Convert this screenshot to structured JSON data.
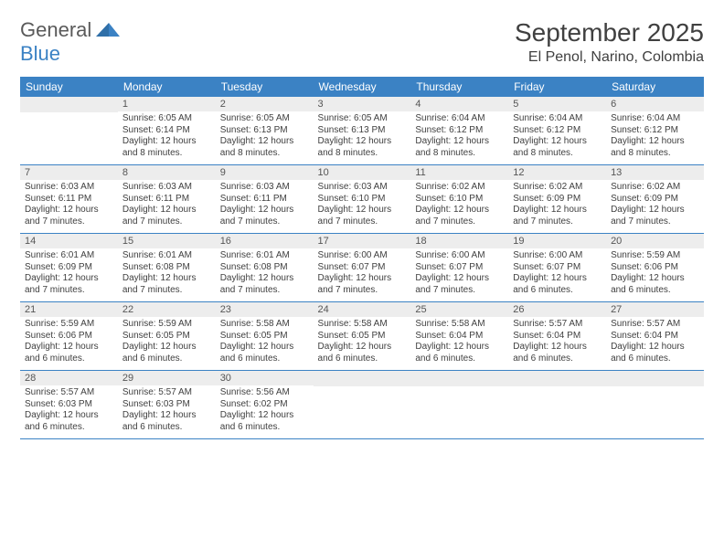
{
  "logo": {
    "text1": "General",
    "text2": "Blue"
  },
  "title": "September 2025",
  "location": "El Penol, Narino, Colombia",
  "colors": {
    "header_bg": "#3b82c4",
    "header_text": "#ffffff",
    "daynum_bg": "#ededed",
    "text": "#404040",
    "rule": "#3b82c4"
  },
  "weekdays": [
    "Sunday",
    "Monday",
    "Tuesday",
    "Wednesday",
    "Thursday",
    "Friday",
    "Saturday"
  ],
  "weeks": [
    [
      {
        "n": "",
        "sr": "",
        "ss": "",
        "dl": ""
      },
      {
        "n": "1",
        "sr": "6:05 AM",
        "ss": "6:14 PM",
        "dl": "12 hours and 8 minutes."
      },
      {
        "n": "2",
        "sr": "6:05 AM",
        "ss": "6:13 PM",
        "dl": "12 hours and 8 minutes."
      },
      {
        "n": "3",
        "sr": "6:05 AM",
        "ss": "6:13 PM",
        "dl": "12 hours and 8 minutes."
      },
      {
        "n": "4",
        "sr": "6:04 AM",
        "ss": "6:12 PM",
        "dl": "12 hours and 8 minutes."
      },
      {
        "n": "5",
        "sr": "6:04 AM",
        "ss": "6:12 PM",
        "dl": "12 hours and 8 minutes."
      },
      {
        "n": "6",
        "sr": "6:04 AM",
        "ss": "6:12 PM",
        "dl": "12 hours and 8 minutes."
      }
    ],
    [
      {
        "n": "7",
        "sr": "6:03 AM",
        "ss": "6:11 PM",
        "dl": "12 hours and 7 minutes."
      },
      {
        "n": "8",
        "sr": "6:03 AM",
        "ss": "6:11 PM",
        "dl": "12 hours and 7 minutes."
      },
      {
        "n": "9",
        "sr": "6:03 AM",
        "ss": "6:11 PM",
        "dl": "12 hours and 7 minutes."
      },
      {
        "n": "10",
        "sr": "6:03 AM",
        "ss": "6:10 PM",
        "dl": "12 hours and 7 minutes."
      },
      {
        "n": "11",
        "sr": "6:02 AM",
        "ss": "6:10 PM",
        "dl": "12 hours and 7 minutes."
      },
      {
        "n": "12",
        "sr": "6:02 AM",
        "ss": "6:09 PM",
        "dl": "12 hours and 7 minutes."
      },
      {
        "n": "13",
        "sr": "6:02 AM",
        "ss": "6:09 PM",
        "dl": "12 hours and 7 minutes."
      }
    ],
    [
      {
        "n": "14",
        "sr": "6:01 AM",
        "ss": "6:09 PM",
        "dl": "12 hours and 7 minutes."
      },
      {
        "n": "15",
        "sr": "6:01 AM",
        "ss": "6:08 PM",
        "dl": "12 hours and 7 minutes."
      },
      {
        "n": "16",
        "sr": "6:01 AM",
        "ss": "6:08 PM",
        "dl": "12 hours and 7 minutes."
      },
      {
        "n": "17",
        "sr": "6:00 AM",
        "ss": "6:07 PM",
        "dl": "12 hours and 7 minutes."
      },
      {
        "n": "18",
        "sr": "6:00 AM",
        "ss": "6:07 PM",
        "dl": "12 hours and 7 minutes."
      },
      {
        "n": "19",
        "sr": "6:00 AM",
        "ss": "6:07 PM",
        "dl": "12 hours and 6 minutes."
      },
      {
        "n": "20",
        "sr": "5:59 AM",
        "ss": "6:06 PM",
        "dl": "12 hours and 6 minutes."
      }
    ],
    [
      {
        "n": "21",
        "sr": "5:59 AM",
        "ss": "6:06 PM",
        "dl": "12 hours and 6 minutes."
      },
      {
        "n": "22",
        "sr": "5:59 AM",
        "ss": "6:05 PM",
        "dl": "12 hours and 6 minutes."
      },
      {
        "n": "23",
        "sr": "5:58 AM",
        "ss": "6:05 PM",
        "dl": "12 hours and 6 minutes."
      },
      {
        "n": "24",
        "sr": "5:58 AM",
        "ss": "6:05 PM",
        "dl": "12 hours and 6 minutes."
      },
      {
        "n": "25",
        "sr": "5:58 AM",
        "ss": "6:04 PM",
        "dl": "12 hours and 6 minutes."
      },
      {
        "n": "26",
        "sr": "5:57 AM",
        "ss": "6:04 PM",
        "dl": "12 hours and 6 minutes."
      },
      {
        "n": "27",
        "sr": "5:57 AM",
        "ss": "6:04 PM",
        "dl": "12 hours and 6 minutes."
      }
    ],
    [
      {
        "n": "28",
        "sr": "5:57 AM",
        "ss": "6:03 PM",
        "dl": "12 hours and 6 minutes."
      },
      {
        "n": "29",
        "sr": "5:57 AM",
        "ss": "6:03 PM",
        "dl": "12 hours and 6 minutes."
      },
      {
        "n": "30",
        "sr": "5:56 AM",
        "ss": "6:02 PM",
        "dl": "12 hours and 6 minutes."
      },
      {
        "n": "",
        "sr": "",
        "ss": "",
        "dl": ""
      },
      {
        "n": "",
        "sr": "",
        "ss": "",
        "dl": ""
      },
      {
        "n": "",
        "sr": "",
        "ss": "",
        "dl": ""
      },
      {
        "n": "",
        "sr": "",
        "ss": "",
        "dl": ""
      }
    ]
  ],
  "labels": {
    "sunrise": "Sunrise: ",
    "sunset": "Sunset: ",
    "daylight": "Daylight: "
  }
}
